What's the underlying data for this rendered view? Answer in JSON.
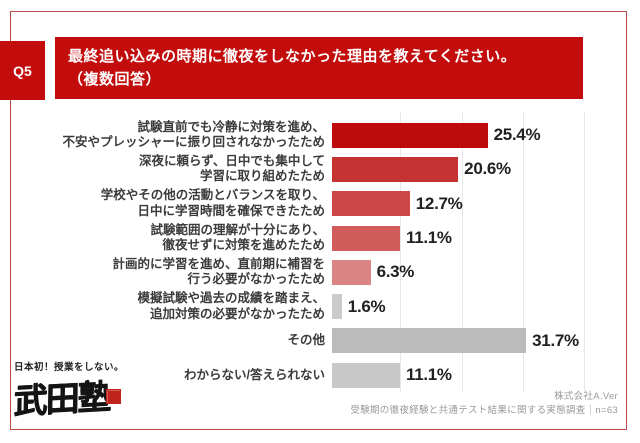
{
  "header": {
    "q_label": "Q5",
    "title_line1": "最終追い込みの時期に徹夜をしなかった理由を教えてください。",
    "title_line2": "（複数回答）"
  },
  "chart_data": {
    "type": "bar",
    "orientation": "horizontal",
    "unit": "%",
    "title": "最終追い込みの時期に徹夜をしなかった理由",
    "xlim": [
      0,
      40
    ],
    "gridlines_at": [
      10,
      20,
      30,
      40
    ],
    "grid": true,
    "categories": [
      [
        "試験直前でも冷静に対策を進め、",
        "不安やプレッシャーに振り回されなかったため"
      ],
      [
        "深夜に頼らず、日中でも集中して",
        "学習に取り組めたため"
      ],
      [
        "学校やその他の活動とバランスを取り、",
        "日中に学習時間を確保できたため"
      ],
      [
        "試験範囲の理解が十分にあり、",
        "徹夜せずに対策を進めたため"
      ],
      [
        "計画的に学習を進め、直前期に補習を",
        "行う必要がなかったため"
      ],
      [
        "模擬試験や過去の成績を踏まえ、",
        "追加対策の必要がなかったため"
      ],
      [
        "その他"
      ],
      [
        "わからない/答えられない"
      ]
    ],
    "values": [
      25.4,
      20.6,
      12.7,
      11.1,
      6.3,
      1.6,
      31.7,
      11.1
    ],
    "value_labels": [
      "25.4%",
      "20.6%",
      "12.7%",
      "11.1%",
      "6.3%",
      "1.6%",
      "31.7%",
      "11.1%"
    ],
    "bar_colors": [
      "#be0b0b",
      "#c53232",
      "#cc4848",
      "#d25c5c",
      "#db8484",
      "#cbcbcb",
      "#bbbbbb",
      "#c8c8c8"
    ]
  },
  "footer": {
    "company": "株式会社A.Ver",
    "survey": "受験期の徹夜経験と共通テスト結果に関する実態調査｜n=63"
  },
  "logo": {
    "tagline": "日本初！授業をしない。",
    "name": "武田塾"
  },
  "colors": {
    "accent_red": "#c30d0d",
    "frame_red": "#b94a46",
    "gridline_gray": "#e7e7e7",
    "label_text": "#3b3b3b",
    "value_text": "#212121",
    "footer_text": "#999999"
  }
}
